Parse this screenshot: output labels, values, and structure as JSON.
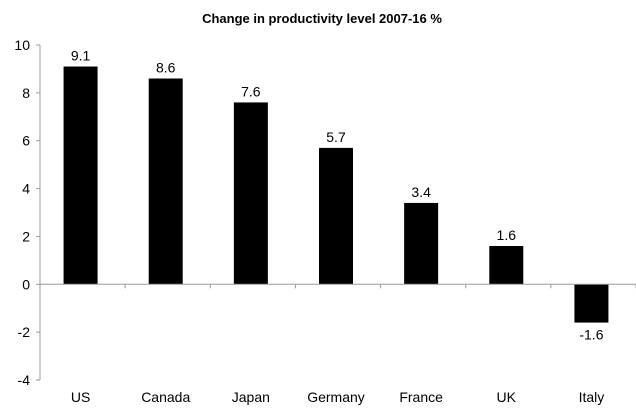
{
  "chart_data": {
    "type": "bar",
    "title": "Change in productivity level 2007-16 %",
    "xlabel": "",
    "ylabel": "",
    "categories": [
      "US",
      "Canada",
      "Japan",
      "Germany",
      "France",
      "UK",
      "Italy"
    ],
    "values": [
      9.1,
      8.6,
      7.6,
      5.7,
      3.4,
      1.6,
      -1.6
    ],
    "data_labels": [
      "9.1",
      "8.6",
      "7.6",
      "5.7",
      "3.4",
      "1.6",
      "-1.6"
    ],
    "ylim": [
      -4,
      10
    ],
    "yticks": [
      10,
      8,
      6,
      4,
      2,
      0,
      -2,
      -4
    ],
    "grid": false,
    "legend": "none",
    "bar_color": "#000000"
  }
}
